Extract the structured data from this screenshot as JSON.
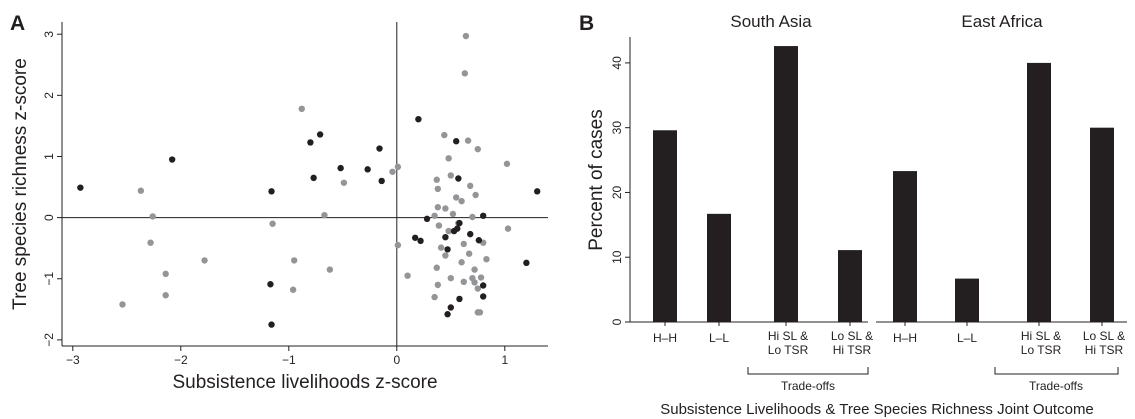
{
  "panels": {
    "a": "A",
    "b": "B"
  },
  "chart_data": [
    {
      "type": "scatter",
      "xlabel": "Subsistence livelihoods z-score",
      "ylabel": "Tree species richness z-score",
      "xlim": [
        -3.1,
        1.4
      ],
      "ylim": [
        -2.1,
        3.2
      ],
      "xticks": [
        -3,
        -2,
        -1,
        0,
        1
      ],
      "yticks": [
        -2,
        -1,
        0,
        1,
        2,
        3
      ],
      "xtick_labels": [
        "−3",
        "−2",
        "−1",
        "0",
        "1"
      ],
      "ytick_labels": [
        "−2",
        "−1",
        "0",
        "1",
        "2",
        "3"
      ],
      "reference_lines": {
        "x": 0,
        "y": 0
      },
      "colors": {
        "black": "#231f20",
        "gray": "#939598"
      },
      "series": [
        {
          "color": "black",
          "points": [
            [
              -2.93,
              0.49
            ],
            [
              -2.08,
              0.95
            ],
            [
              -1.16,
              0.43
            ],
            [
              -1.17,
              -1.09
            ],
            [
              -1.16,
              -1.75
            ],
            [
              -0.8,
              1.23
            ],
            [
              -0.71,
              1.36
            ],
            [
              -0.77,
              0.65
            ],
            [
              -0.52,
              0.81
            ],
            [
              -0.27,
              0.79
            ],
            [
              -0.16,
              1.13
            ],
            [
              -0.14,
              0.6
            ],
            [
              0.2,
              1.61
            ],
            [
              0.28,
              -0.02
            ],
            [
              0.17,
              -0.33
            ],
            [
              0.22,
              -0.38
            ],
            [
              0.45,
              -0.32
            ],
            [
              0.47,
              -0.52
            ],
            [
              0.53,
              -0.22
            ],
            [
              0.56,
              -0.18
            ],
            [
              0.58,
              -0.09
            ],
            [
              0.68,
              -0.27
            ],
            [
              0.76,
              -0.37
            ],
            [
              0.55,
              1.25
            ],
            [
              0.57,
              0.64
            ],
            [
              0.5,
              -1.47
            ],
            [
              0.47,
              -1.58
            ],
            [
              0.58,
              -1.33
            ],
            [
              0.8,
              -1.11
            ],
            [
              0.8,
              -1.29
            ],
            [
              0.8,
              0.03
            ],
            [
              1.2,
              -0.74
            ],
            [
              1.3,
              0.43
            ]
          ]
        },
        {
          "color": "gray",
          "points": [
            [
              -2.37,
              0.44
            ],
            [
              -2.26,
              0.02
            ],
            [
              -2.28,
              -0.41
            ],
            [
              -2.14,
              -0.92
            ],
            [
              -2.14,
              -1.27
            ],
            [
              -2.54,
              -1.42
            ],
            [
              -1.78,
              -0.7
            ],
            [
              -1.15,
              -0.1
            ],
            [
              -0.95,
              -0.7
            ],
            [
              -0.96,
              -1.18
            ],
            [
              -0.88,
              1.78
            ],
            [
              -0.67,
              0.04
            ],
            [
              -0.62,
              -0.85
            ],
            [
              -0.49,
              0.57
            ],
            [
              -0.04,
              0.75
            ],
            [
              0.01,
              0.83
            ],
            [
              0.01,
              -0.45
            ],
            [
              0.1,
              -0.95
            ],
            [
              0.37,
              0.62
            ],
            [
              0.38,
              0.47
            ],
            [
              0.38,
              0.17
            ],
            [
              0.39,
              -0.13
            ],
            [
              0.41,
              -0.49
            ],
            [
              0.44,
              1.35
            ],
            [
              0.48,
              0.97
            ],
            [
              0.5,
              0.69
            ],
            [
              0.55,
              0.33
            ],
            [
              0.52,
              0.06
            ],
            [
              0.57,
              -0.09
            ],
            [
              0.6,
              0.27
            ],
            [
              0.62,
              -0.43
            ],
            [
              0.63,
              2.36
            ],
            [
              0.64,
              2.97
            ],
            [
              0.66,
              1.26
            ],
            [
              0.68,
              0.52
            ],
            [
              0.7,
              0.01
            ],
            [
              0.67,
              -0.59
            ],
            [
              0.6,
              -0.73
            ],
            [
              0.72,
              -0.85
            ],
            [
              0.72,
              -1.06
            ],
            [
              0.7,
              -0.99
            ],
            [
              0.73,
              0.37
            ],
            [
              0.75,
              1.12
            ],
            [
              0.8,
              -0.41
            ],
            [
              0.78,
              -0.98
            ],
            [
              0.75,
              -1.16
            ],
            [
              0.75,
              -1.55
            ],
            [
              0.45,
              -0.62
            ],
            [
              0.37,
              -0.82
            ],
            [
              0.38,
              -1.1
            ],
            [
              0.35,
              -1.3
            ],
            [
              0.5,
              -0.99
            ],
            [
              0.45,
              0.15
            ],
            [
              0.48,
              -0.22
            ],
            [
              0.35,
              0.03
            ],
            [
              1.02,
              0.88
            ],
            [
              1.03,
              -0.18
            ],
            [
              0.83,
              -0.68
            ],
            [
              0.77,
              -1.55
            ],
            [
              0.62,
              -1.05
            ]
          ]
        }
      ]
    },
    {
      "type": "bar",
      "ylabel": "Percent of cases",
      "xlabel": "Subsistence Livelihoods & Tree Species Richness Joint Outcome",
      "ylim": [
        0,
        44
      ],
      "yticks": [
        0,
        10,
        20,
        30,
        40
      ],
      "bar_color": "#231f20",
      "bracket_label": "Trade-offs",
      "groups": [
        {
          "name": "South Asia",
          "categories": [
            [
              "H–H"
            ],
            [
              "L–L"
            ],
            [
              "Hi SL &",
              "Lo TSR"
            ],
            [
              "Lo SL &",
              "Hi TSR"
            ]
          ],
          "values": [
            29.6,
            16.7,
            42.6,
            11.1
          ]
        },
        {
          "name": "East Africa",
          "categories": [
            [
              "H–H"
            ],
            [
              "L–L"
            ],
            [
              "Hi SL &",
              "Lo TSR"
            ],
            [
              "Lo SL &",
              "Hi TSR"
            ]
          ],
          "values": [
            23.3,
            6.7,
            40.0,
            30.0
          ]
        }
      ]
    }
  ]
}
